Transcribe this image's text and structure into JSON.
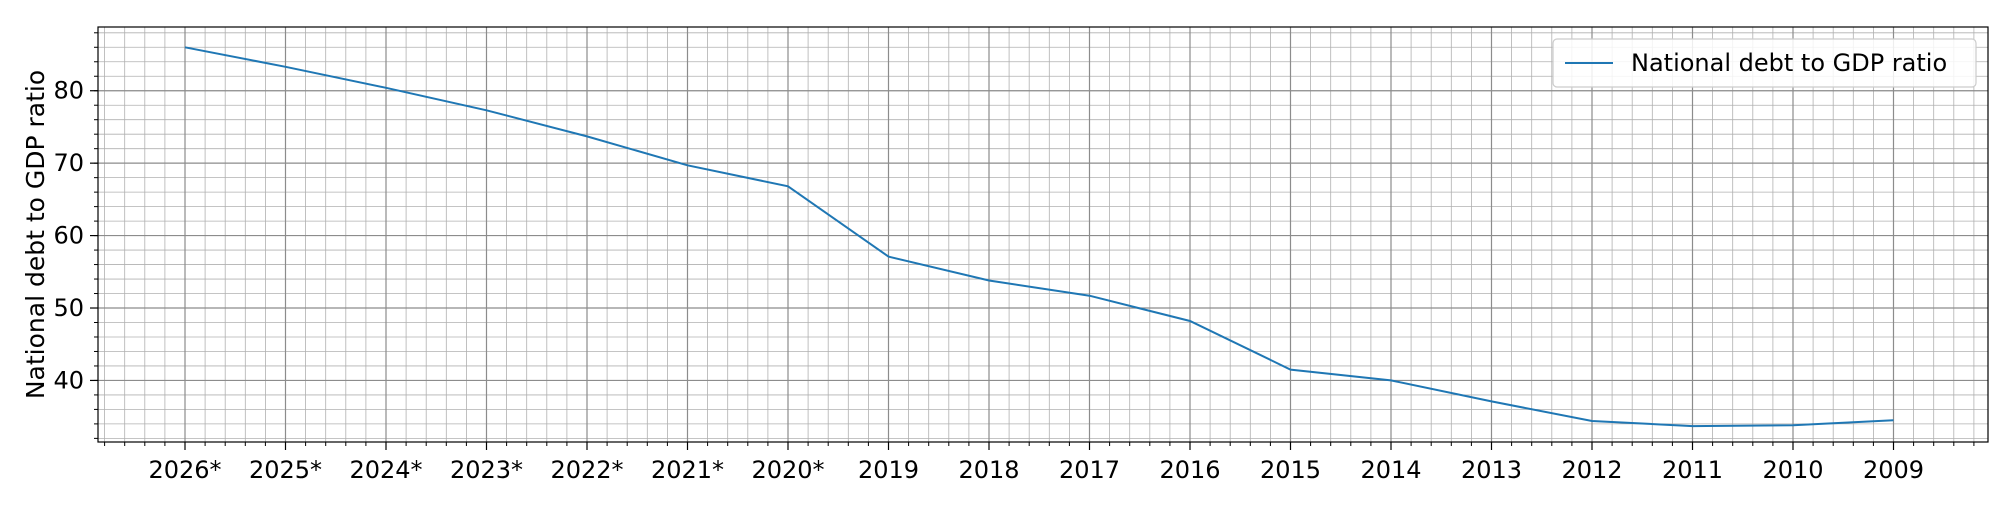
{
  "chart_data": {
    "type": "line",
    "categories": [
      "2026*",
      "2025*",
      "2024*",
      "2023*",
      "2022*",
      "2021*",
      "2020*",
      "2019",
      "2018",
      "2017",
      "2016",
      "2015",
      "2014",
      "2013",
      "2012",
      "2011",
      "2010",
      "2009"
    ],
    "series": [
      {
        "name": "National debt to GDP ratio",
        "values": [
          86.0,
          83.3,
          80.4,
          77.3,
          73.7,
          69.7,
          66.8,
          57.1,
          53.8,
          51.7,
          48.2,
          41.5,
          40.0,
          37.1,
          34.4,
          33.7,
          33.8,
          34.5
        ],
        "color": "#1f77b4"
      }
    ],
    "xlabel": "",
    "ylabel": "National debt to GDP ratio",
    "yticks": [
      40,
      50,
      60,
      70,
      80
    ],
    "ylim": [
      31.5,
      88.8
    ],
    "grid": true,
    "minor_grid": true,
    "legend_position": "top-right"
  }
}
